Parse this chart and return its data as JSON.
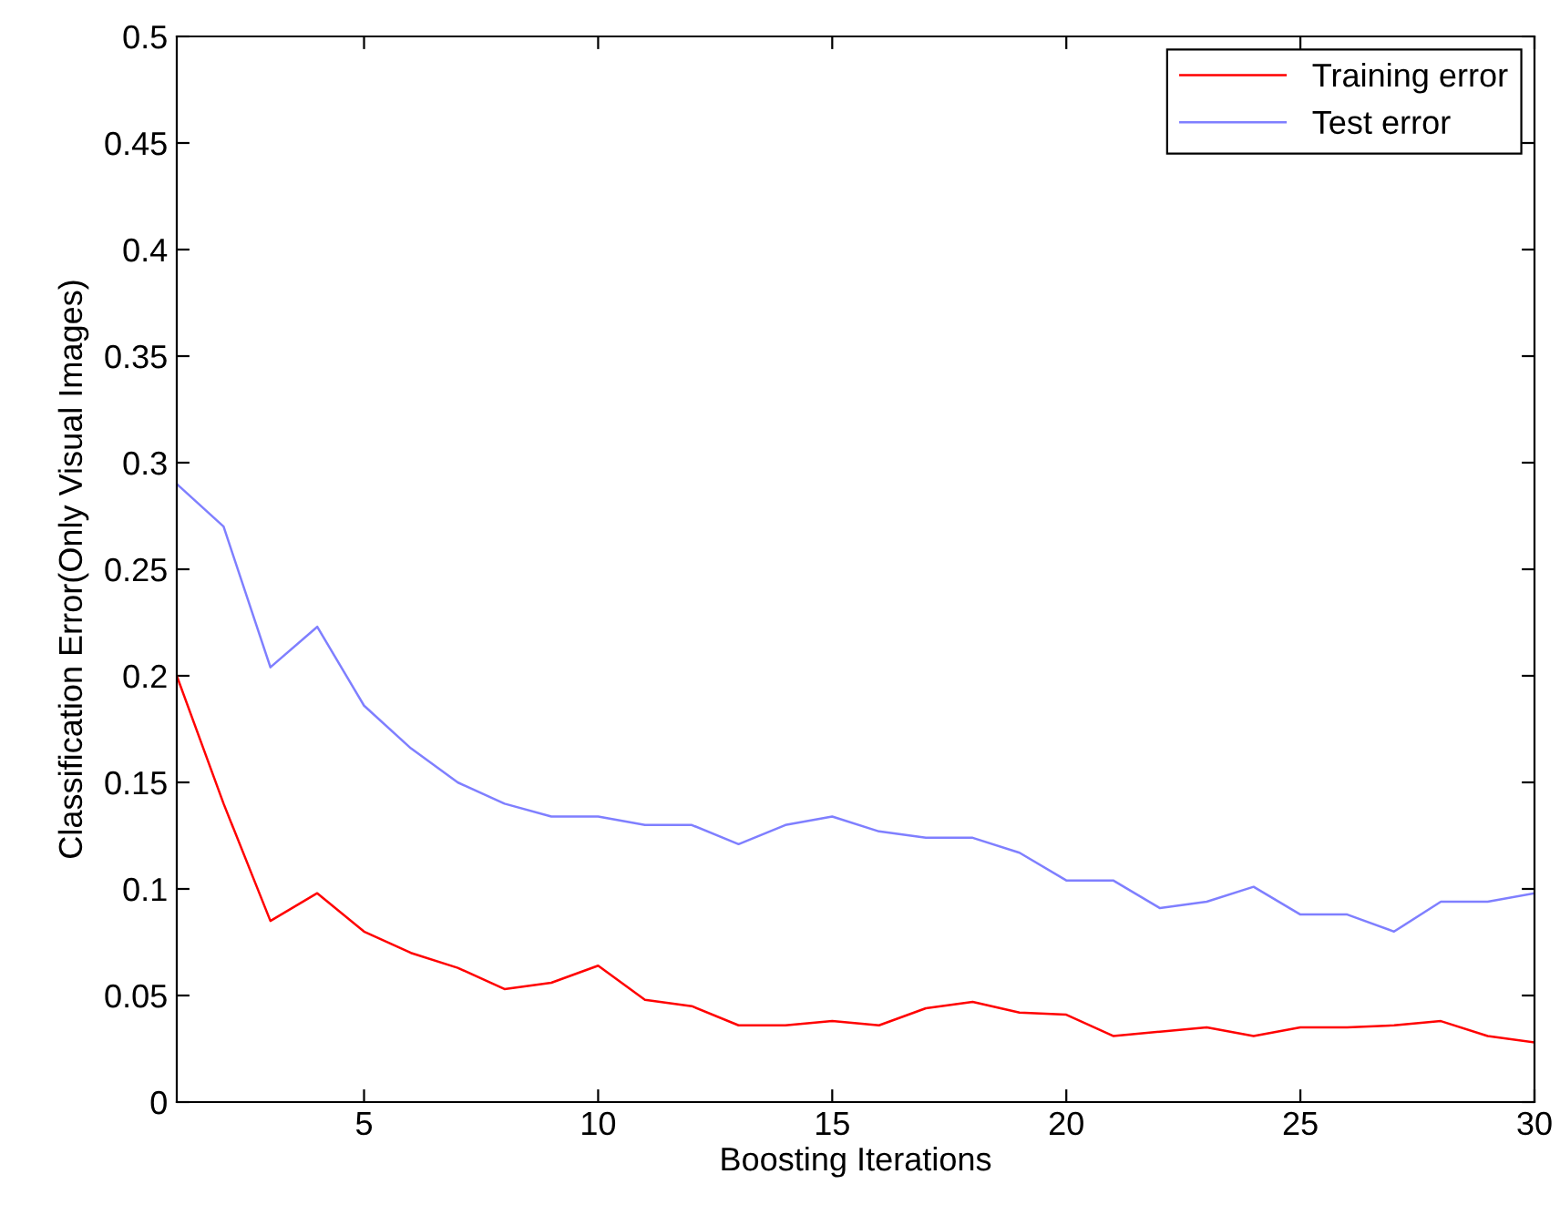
{
  "chart_data": {
    "type": "line",
    "xlabel": "Boosting Iterations",
    "ylabel": "Classification Error(Only Visual Images)",
    "x": [
      1,
      2,
      3,
      4,
      5,
      6,
      7,
      8,
      9,
      10,
      11,
      12,
      13,
      14,
      15,
      16,
      17,
      18,
      19,
      20,
      21,
      22,
      23,
      24,
      25,
      26,
      27,
      28,
      29,
      30
    ],
    "series": [
      {
        "name": "Training error",
        "color": "#ff0000",
        "values": [
          0.2,
          0.14,
          0.085,
          0.098,
          0.08,
          0.07,
          0.063,
          0.053,
          0.056,
          0.064,
          0.048,
          0.045,
          0.036,
          0.036,
          0.038,
          0.036,
          0.044,
          0.047,
          0.042,
          0.041,
          0.031,
          0.033,
          0.035,
          0.031,
          0.035,
          0.035,
          0.036,
          0.038,
          0.031,
          0.028
        ]
      },
      {
        "name": "Test error",
        "color": "#7f7fff",
        "values": [
          0.29,
          0.27,
          0.204,
          0.223,
          0.186,
          0.166,
          0.15,
          0.14,
          0.134,
          0.134,
          0.13,
          0.13,
          0.121,
          0.13,
          0.134,
          0.127,
          0.124,
          0.124,
          0.117,
          0.104,
          0.104,
          0.091,
          0.094,
          0.101,
          0.088,
          0.088,
          0.08,
          0.094,
          0.094,
          0.098
        ]
      }
    ],
    "xlim": [
      1,
      30
    ],
    "xticks": [
      5,
      10,
      15,
      20,
      25,
      30
    ],
    "ylim": [
      0,
      0.5
    ],
    "yticks": [
      0,
      0.05,
      0.1,
      0.15,
      0.2,
      0.25,
      0.3,
      0.35,
      0.4,
      0.45,
      0.5
    ],
    "grid": false,
    "legend": "top right",
    "marker": "none",
    "line_style": "solid"
  }
}
